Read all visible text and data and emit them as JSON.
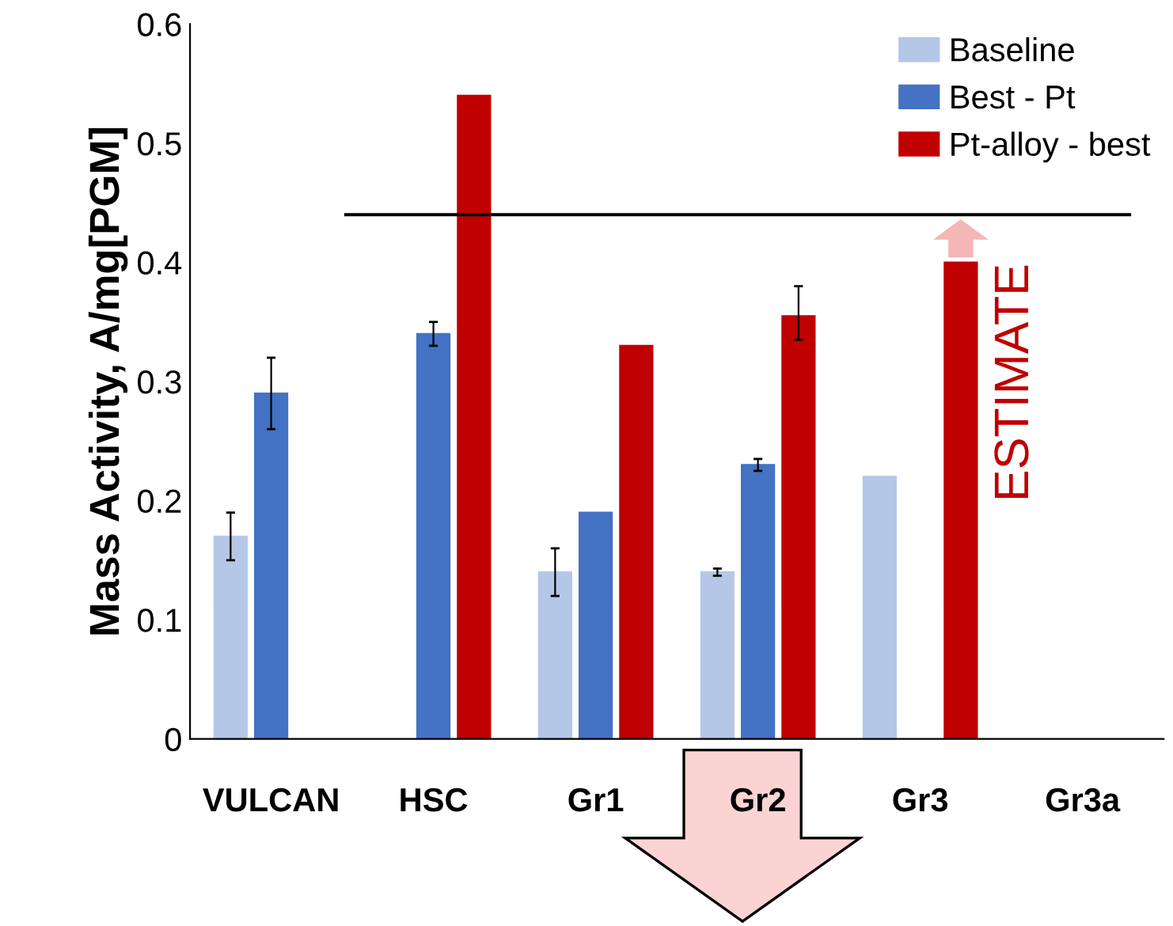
{
  "chart_data": {
    "type": "bar",
    "ylabel": "Mass Activity, A/mg[PGM]",
    "categories": [
      "VULCAN",
      "HSC",
      "Gr1",
      "Gr2",
      "Gr3",
      "Gr3a"
    ],
    "series": [
      {
        "name": "Baseline",
        "color": "#b4c7e7",
        "values": [
          0.17,
          null,
          0.14,
          0.14,
          0.22,
          null
        ],
        "errors": [
          [
            0.15,
            0.19
          ],
          null,
          [
            0.12,
            0.16
          ],
          [
            0.137,
            0.143
          ],
          null,
          null
        ]
      },
      {
        "name": "Best - Pt",
        "color": "#4472c4",
        "values": [
          0.29,
          0.34,
          0.19,
          0.23,
          null,
          null
        ],
        "errors": [
          [
            0.26,
            0.32
          ],
          [
            0.33,
            0.35
          ],
          null,
          [
            0.225,
            0.235
          ],
          null,
          null
        ]
      },
      {
        "name": "Pt-alloy - best",
        "color": "#c00000",
        "values": [
          null,
          0.54,
          0.33,
          0.355,
          0.4,
          null
        ],
        "errors": [
          null,
          null,
          null,
          [
            0.335,
            0.38
          ],
          null,
          null
        ]
      }
    ],
    "ylim": [
      0,
      0.6
    ],
    "yticks": [
      {
        "value": 0,
        "label": "0"
      },
      0.1,
      0.2,
      0.3,
      0.4,
      0.5,
      0.6
    ],
    "ref_lines": [
      {
        "axis": "y",
        "value": 0.44,
        "color": "#000000"
      }
    ],
    "annotations": [
      "ESTIMATE"
    ],
    "legend": "top right",
    "grid": false
  }
}
